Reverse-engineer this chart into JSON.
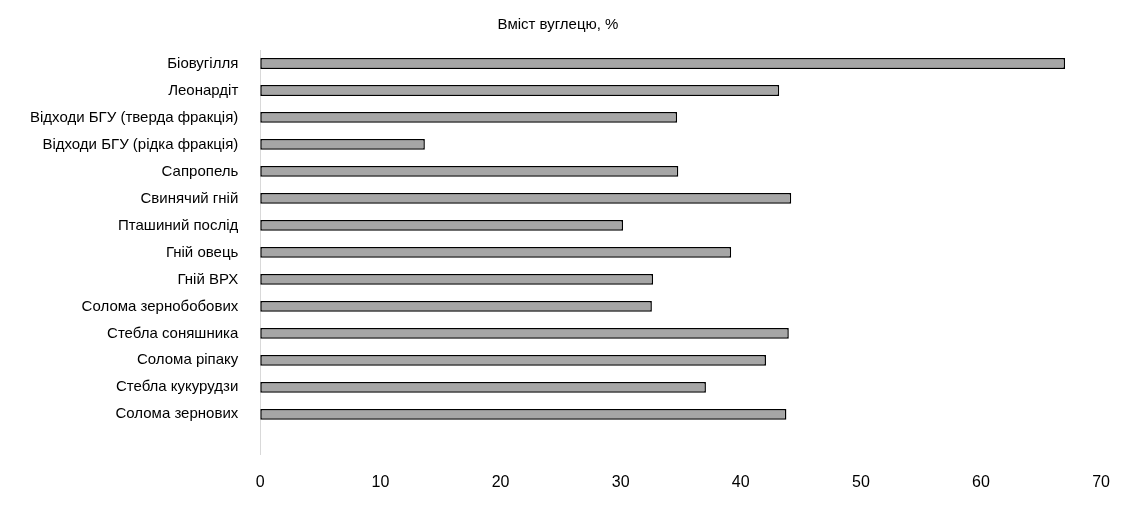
{
  "chart_data": {
    "type": "bar",
    "orientation": "horizontal",
    "title": "Вміст вуглецю, %",
    "categories": [
      "Біовугілля",
      "Леонардіт",
      "Відходи БГУ (тверда фракція)",
      "Відходи БГУ (рідка фракція)",
      "Сапропель",
      "Свинячий гній",
      "Пташиний послід",
      "Гній овець",
      "Гній ВРХ",
      "Солома зернобобових",
      "Стебла соняшника",
      "Солома ріпаку",
      "Стебла кукурудзи",
      "Солома зернових"
    ],
    "values": [
      67.0,
      43.2,
      34.7,
      13.7,
      34.8,
      44.2,
      30.2,
      39.2,
      32.7,
      32.6,
      44.0,
      42.1,
      37.1,
      43.8
    ],
    "color": "#a6a6a6",
    "xlim": [
      0,
      70
    ],
    "xticks": [
      0,
      10,
      20,
      30,
      40,
      50,
      60,
      70
    ],
    "grid": false,
    "legend": false
  }
}
